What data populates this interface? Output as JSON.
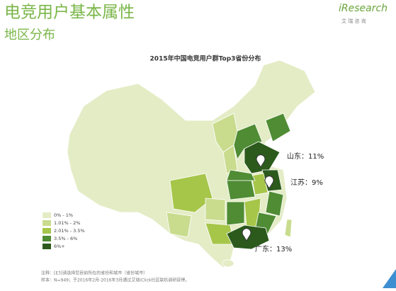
{
  "header": {
    "title": "电竞用户基本属性",
    "subtitle": "地区分布"
  },
  "brand": {
    "name": "iResearch",
    "tagline": "艾 瑞 咨 询"
  },
  "map": {
    "title": "2015年中国电竞用户群Top3省份分布",
    "callouts": [
      "山东：11%",
      "江苏：9%",
      "广东：13%"
    ]
  },
  "legend": [
    {
      "label": "0% - 1%",
      "color": "#e4ecc6"
    },
    {
      "label": "1.01% - 2%",
      "color": "#c9dc8e"
    },
    {
      "label": "2.01% - 3.5%",
      "color": "#a6c64a"
    },
    {
      "label": "3.5% - 6%",
      "color": "#4f8c34"
    },
    {
      "label": "6%+",
      "color": "#2b5a1c"
    }
  ],
  "notes": [
    "注释：[E3]请选择您目前所在的省份和城市（省份城市）",
    "样本：N=949；于2016年2月-2016年3月通过艾瑞iClick社区联机调研获得。"
  ]
}
